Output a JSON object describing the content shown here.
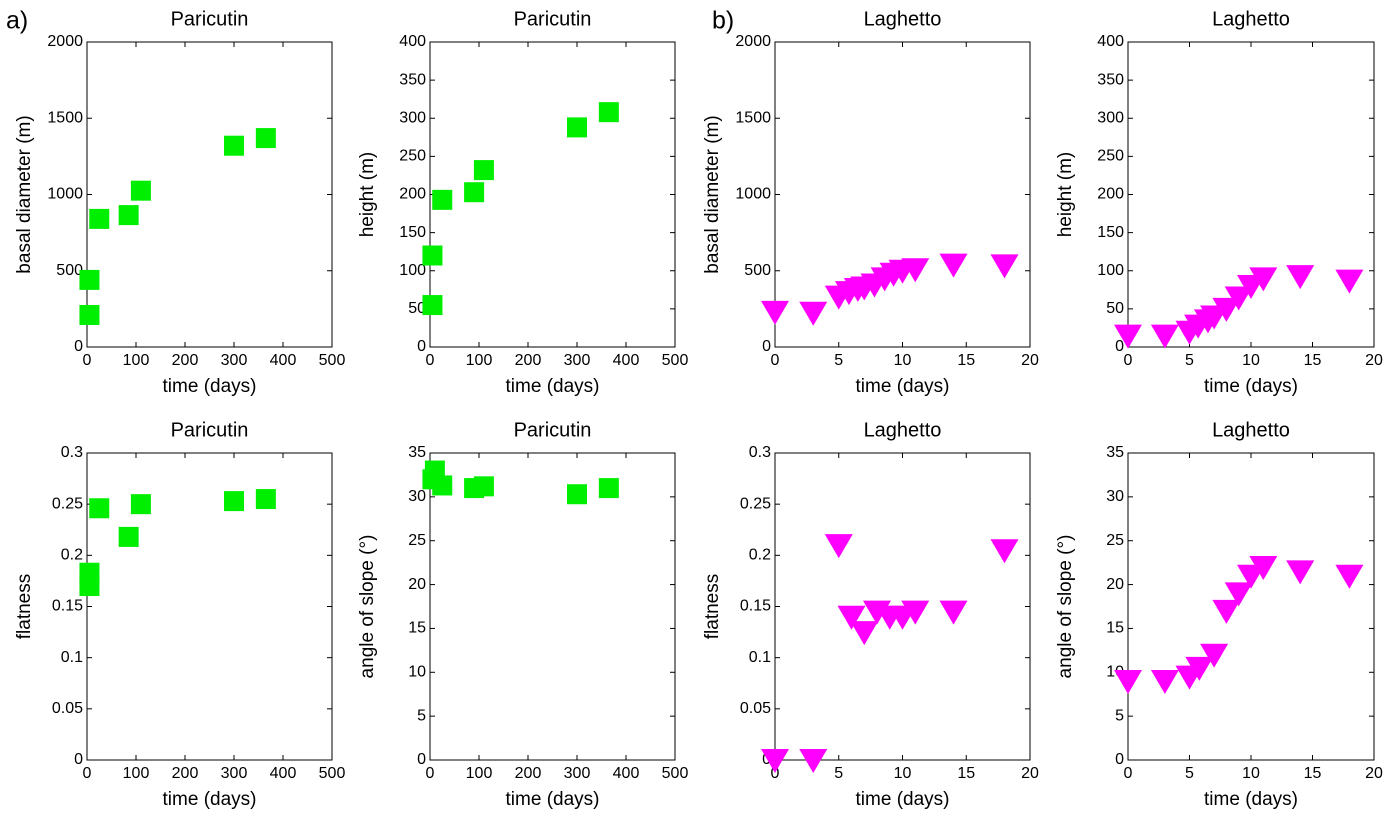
{
  "panel_labels": [
    "a)",
    "b)"
  ],
  "chart_data": [
    {
      "type": "scatter",
      "title": "Paricutin",
      "x_label": "time (days)",
      "y_label": "basal diameter (m)",
      "marker": "square",
      "color": "#00ee00",
      "x": [
        5,
        5,
        25,
        85,
        110,
        300,
        365
      ],
      "values": [
        210,
        440,
        840,
        865,
        1025,
        1320,
        1370
      ],
      "xlim": [
        0,
        500
      ],
      "xticks": [
        0,
        100,
        200,
        300,
        400,
        500
      ],
      "ylim": [
        0,
        2000
      ],
      "yticks": [
        0,
        500,
        1000,
        1500,
        2000
      ]
    },
    {
      "type": "scatter",
      "title": "Paricutin",
      "x_label": "time (days)",
      "y_label": "height (m)",
      "marker": "square",
      "color": "#00ee00",
      "x": [
        5,
        5,
        25,
        90,
        110,
        300,
        365
      ],
      "values": [
        55,
        120,
        193,
        203,
        232,
        288,
        308
      ],
      "xlim": [
        0,
        500
      ],
      "xticks": [
        0,
        100,
        200,
        300,
        400,
        500
      ],
      "ylim": [
        0,
        400
      ],
      "yticks": [
        0,
        50,
        100,
        150,
        200,
        250,
        300,
        350,
        400
      ]
    },
    {
      "type": "scatter",
      "title": "Laghetto",
      "x_label": "time (days)",
      "y_label": "basal diameter (m)",
      "marker": "triangle-down",
      "color": "#ff00ff",
      "x": [
        0,
        3,
        5,
        5.8,
        6.5,
        7,
        7.8,
        8.6,
        9.3,
        10,
        11,
        14,
        18
      ],
      "values": [
        230,
        225,
        330,
        360,
        380,
        390,
        410,
        450,
        480,
        500,
        510,
        540,
        535
      ],
      "xlim": [
        0,
        20
      ],
      "xticks": [
        0,
        5,
        10,
        15,
        20
      ],
      "ylim": [
        0,
        2000
      ],
      "yticks": [
        0,
        500,
        1000,
        1500,
        2000
      ]
    },
    {
      "type": "scatter",
      "title": "Laghetto",
      "x_label": "time (days)",
      "y_label": "height (m)",
      "marker": "triangle-down",
      "color": "#ff00ff",
      "x": [
        0,
        3,
        5,
        5.7,
        6.5,
        7,
        8,
        9,
        10,
        11,
        14,
        18
      ],
      "values": [
        15,
        15,
        20,
        28,
        35,
        40,
        50,
        65,
        80,
        90,
        93,
        87
      ],
      "xlim": [
        0,
        20
      ],
      "xticks": [
        0,
        5,
        10,
        15,
        20
      ],
      "ylim": [
        0,
        400
      ],
      "yticks": [
        0,
        50,
        100,
        150,
        200,
        250,
        300,
        350,
        400
      ]
    },
    {
      "type": "scatter",
      "title": "Paricutin",
      "x_label": "time (days)",
      "y_label": "flatness",
      "marker": "square",
      "color": "#00ee00",
      "x": [
        5,
        5,
        25,
        85,
        110,
        300,
        365
      ],
      "values": [
        0.183,
        0.17,
        0.246,
        0.218,
        0.25,
        0.253,
        0.255
      ],
      "xlim": [
        0,
        500
      ],
      "xticks": [
        0,
        100,
        200,
        300,
        400,
        500
      ],
      "ylim": [
        0,
        0.3
      ],
      "yticks": [
        0,
        0.05,
        0.1,
        0.15,
        0.2,
        0.25,
        0.3
      ]
    },
    {
      "type": "scatter",
      "title": "Paricutin",
      "x_label": "time (days)",
      "y_label": "angle of slope (°)",
      "marker": "square",
      "color": "#00ee00",
      "x": [
        5,
        10,
        25,
        90,
        110,
        300,
        365
      ],
      "values": [
        32,
        33,
        31.3,
        31,
        31.2,
        30.3,
        31
      ],
      "xlim": [
        0,
        500
      ],
      "xticks": [
        0,
        100,
        200,
        300,
        400,
        500
      ],
      "ylim": [
        0,
        35
      ],
      "yticks": [
        0,
        5,
        10,
        15,
        20,
        25,
        30,
        35
      ]
    },
    {
      "type": "scatter",
      "title": "Laghetto",
      "x_label": "time (days)",
      "y_label": "flatness",
      "marker": "triangle-down",
      "color": "#ff00ff",
      "x": [
        0,
        3,
        5,
        6,
        7,
        8,
        9,
        10,
        11,
        14,
        18
      ],
      "values": [
        0,
        0,
        0.21,
        0.14,
        0.125,
        0.145,
        0.14,
        0.14,
        0.145,
        0.145,
        0.205
      ],
      "xlim": [
        0,
        20
      ],
      "xticks": [
        0,
        5,
        10,
        15,
        20
      ],
      "ylim": [
        0,
        0.3
      ],
      "yticks": [
        0,
        0.05,
        0.1,
        0.15,
        0.2,
        0.25,
        0.3
      ]
    },
    {
      "type": "scatter",
      "title": "Laghetto",
      "x_label": "time (days)",
      "y_label": "angle of slope (°)",
      "marker": "triangle-down",
      "color": "#ff00ff",
      "x": [
        0,
        3,
        5,
        5.8,
        7,
        8,
        9,
        10,
        11,
        14,
        18
      ],
      "values": [
        9,
        9,
        9.5,
        10.5,
        12,
        17,
        19,
        21,
        22,
        21.5,
        21
      ],
      "xlim": [
        0,
        20
      ],
      "xticks": [
        0,
        5,
        10,
        15,
        20
      ],
      "ylim": [
        0,
        35
      ],
      "yticks": [
        0,
        5,
        10,
        15,
        20,
        25,
        30,
        35
      ]
    }
  ]
}
